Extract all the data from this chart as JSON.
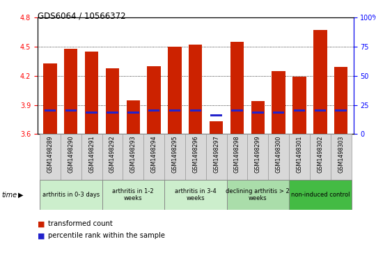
{
  "title": "GDS6064 / 10566372",
  "samples": [
    "GSM1498289",
    "GSM1498290",
    "GSM1498291",
    "GSM1498292",
    "GSM1498293",
    "GSM1498294",
    "GSM1498295",
    "GSM1498296",
    "GSM1498297",
    "GSM1498298",
    "GSM1498299",
    "GSM1498300",
    "GSM1498301",
    "GSM1498302",
    "GSM1498303"
  ],
  "red_values": [
    4.33,
    4.48,
    4.45,
    4.28,
    3.95,
    4.3,
    4.5,
    4.52,
    3.73,
    4.55,
    3.94,
    4.25,
    4.19,
    4.67,
    4.29
  ],
  "blue_values": [
    3.845,
    3.845,
    3.82,
    3.82,
    3.82,
    3.845,
    3.845,
    3.845,
    3.79,
    3.845,
    3.82,
    3.82,
    3.845,
    3.845,
    3.845
  ],
  "ymin": 3.6,
  "ymax": 4.8,
  "yticks_left": [
    3.6,
    3.9,
    4.2,
    4.5,
    4.8
  ],
  "yticks_right_labels": [
    "0",
    "25",
    "50",
    "75",
    "100%"
  ],
  "bar_color": "#cc2200",
  "blue_color": "#2222cc",
  "bar_width": 0.65,
  "groups": [
    {
      "label": "arthritis in 0-3 days",
      "start": 0,
      "end": 3,
      "color": "#cceecc"
    },
    {
      "label": "arthritis in 1-2\nweeks",
      "start": 3,
      "end": 6,
      "color": "#cceecc"
    },
    {
      "label": "arthritis in 3-4\nweeks",
      "start": 6,
      "end": 9,
      "color": "#cceecc"
    },
    {
      "label": "declining arthritis > 2\nweeks",
      "start": 9,
      "end": 12,
      "color": "#aaddaa"
    },
    {
      "label": "non-induced control",
      "start": 12,
      "end": 15,
      "color": "#44bb44"
    }
  ],
  "legend_red_label": "transformed count",
  "legend_blue_label": "percentile rank within the sample"
}
